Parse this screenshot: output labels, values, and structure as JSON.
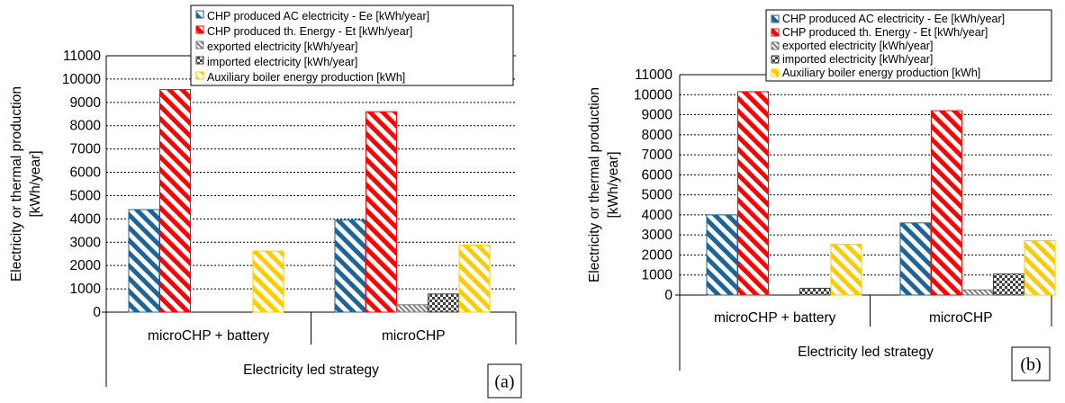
{
  "chart_data": [
    {
      "type": "bar",
      "panel": "(a)",
      "categories": [
        "microCHP + battery",
        "microCHP"
      ],
      "xlabel": "Electricity led strategy",
      "ylabel": "Electricity or thermal production [kWh/year]",
      "ylim": [
        0,
        11000
      ],
      "yticks": [
        "0",
        "1000",
        "2000",
        "3000",
        "4000",
        "5000",
        "6000",
        "7000",
        "8000",
        "9000",
        "10000",
        "11000"
      ],
      "grid": true,
      "legend_position": "top-right",
      "series": [
        {
          "name": "CHP produced AC electricity - Ee [kWh/year]",
          "values": [
            4400,
            3950
          ],
          "color": "#1f6496"
        },
        {
          "name": "CHP produced th. Energy - Et [kWh/year]",
          "values": [
            9550,
            8600
          ],
          "color": "#ff0000"
        },
        {
          "name": "exported electricity [kWh/year]",
          "values": [
            0,
            320
          ],
          "color": "#7f7f7f"
        },
        {
          "name": "imported electricity [kWh/year]",
          "values": [
            0,
            780
          ],
          "color": "#404040"
        },
        {
          "name": "Auxiliary boiler energy production [kWh]",
          "values": [
            2620,
            2880
          ],
          "color": "#ffcc00"
        }
      ]
    },
    {
      "type": "bar",
      "panel": "(b)",
      "categories": [
        "microCHP + battery",
        "microCHP"
      ],
      "xlabel": "Electricity led strategy",
      "ylabel": "Electricity or thermal production [kWh/year]",
      "ylim": [
        0,
        11000
      ],
      "yticks": [
        "0",
        "1000",
        "2000",
        "3000",
        "4000",
        "5000",
        "6000",
        "7000",
        "8000",
        "9000",
        "10000",
        "11000"
      ],
      "grid": true,
      "legend_position": "top-right",
      "series": [
        {
          "name": "CHP produced AC electricity - Ee [kWh/year]",
          "values": [
            4000,
            3600
          ],
          "color": "#1f6496"
        },
        {
          "name": "CHP produced th. Energy - Et [kWh/year]",
          "values": [
            10150,
            9200
          ],
          "color": "#ff0000"
        },
        {
          "name": "exported electricity [kWh/year]",
          "values": [
            0,
            260
          ],
          "color": "#7f7f7f"
        },
        {
          "name": "imported electricity [kWh/year]",
          "values": [
            340,
            1050
          ],
          "color": "#404040"
        },
        {
          "name": "Auxiliary boiler energy production [kWh]",
          "values": [
            2540,
            2720
          ],
          "color": "#ffcc00"
        }
      ]
    }
  ]
}
